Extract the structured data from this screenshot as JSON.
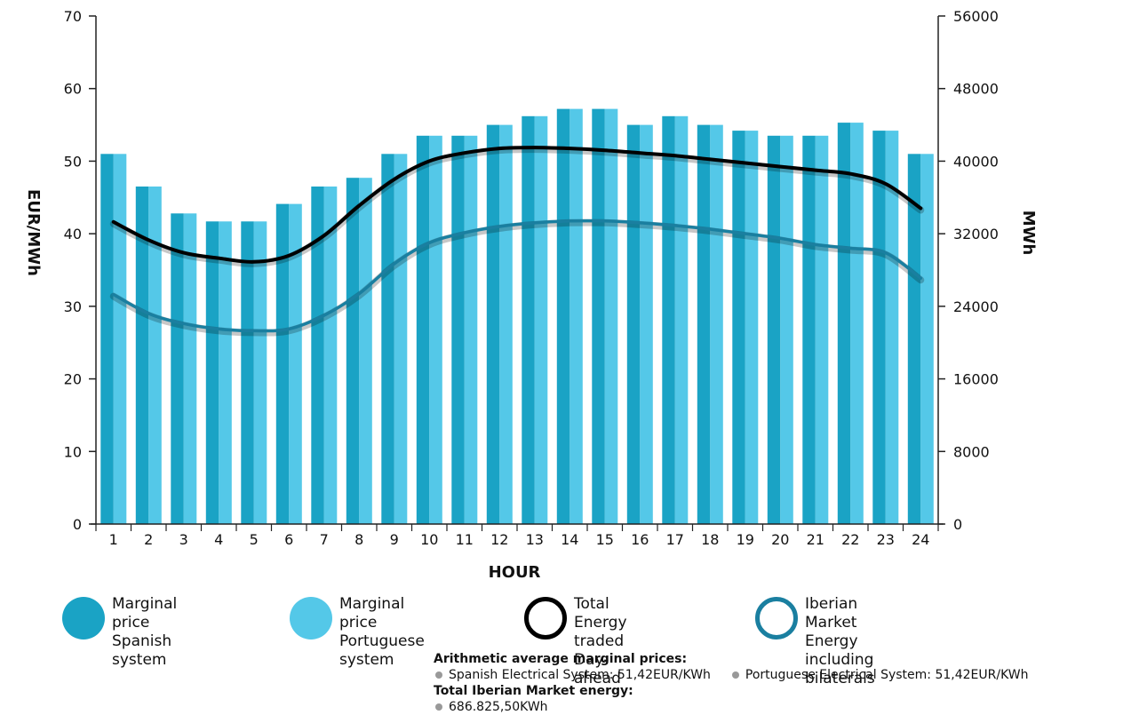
{
  "chart_data": {
    "type": "bar",
    "xlabel": "HOUR",
    "ylabel_left": "EUR/MWh",
    "ylabel_right": "MWh",
    "categories": [
      "1",
      "2",
      "3",
      "4",
      "5",
      "6",
      "7",
      "8",
      "9",
      "10",
      "11",
      "12",
      "13",
      "14",
      "15",
      "16",
      "17",
      "18",
      "19",
      "20",
      "21",
      "22",
      "23",
      "24"
    ],
    "y_left_range": [
      0,
      70
    ],
    "y_left_ticks": [
      "0",
      "10",
      "20",
      "30",
      "40",
      "50",
      "60",
      "70"
    ],
    "y_right_range": [
      0,
      56000
    ],
    "y_right_ticks": [
      "0",
      "8000",
      "16000",
      "24000",
      "32000",
      "40000",
      "48000",
      "56000"
    ],
    "grid": false,
    "series": [
      {
        "name": "Marginal price Spanish system",
        "axis": "left",
        "kind": "bar",
        "color": "#1aa3c5",
        "values": [
          51,
          46.5,
          42.8,
          41.7,
          41.7,
          44.1,
          46.5,
          47.7,
          51,
          53.5,
          53.5,
          55,
          56.2,
          57.2,
          57.2,
          55,
          56.2,
          55,
          54.2,
          53.5,
          53.5,
          55.3,
          54.2,
          51
        ]
      },
      {
        "name": "Marginal price Portuguese system",
        "axis": "left",
        "kind": "bar",
        "color": "#54c8e8",
        "values": [
          51,
          46.5,
          42.8,
          41.7,
          41.7,
          44.1,
          46.5,
          47.7,
          51,
          53.5,
          53.5,
          55,
          56.2,
          57.2,
          57.2,
          55,
          56.2,
          55,
          54.2,
          53.5,
          53.5,
          55.3,
          54.2,
          51
        ]
      },
      {
        "name": "Total Energy traded Day-ahead",
        "axis": "right",
        "kind": "line",
        "color": "#000000",
        "values": [
          33300,
          31300,
          29900,
          29300,
          28900,
          29600,
          31800,
          35100,
          38000,
          40000,
          40900,
          41400,
          41500,
          41400,
          41200,
          40900,
          40600,
          40200,
          39800,
          39400,
          39000,
          38600,
          37500,
          34800
        ]
      },
      {
        "name": "Iberian Market Energy including bilaterals",
        "axis": "right",
        "kind": "line",
        "color": "#1a7fa0",
        "values": [
          25300,
          23200,
          22100,
          21500,
          21300,
          21500,
          23000,
          25400,
          28700,
          31000,
          32100,
          32800,
          33200,
          33400,
          33400,
          33200,
          32900,
          32500,
          32000,
          31500,
          30800,
          30400,
          29900,
          27100
        ]
      }
    ]
  },
  "legend": [
    {
      "label": "Marginal price\nSpanish system",
      "style": "fill",
      "color": "#1aa3c5"
    },
    {
      "label": "Marginal price\nPortuguese system",
      "style": "fill",
      "color": "#54c8e8"
    },
    {
      "label": "Total Energy traded\nDay-ahead",
      "style": "ring",
      "color": "#000000"
    },
    {
      "label": "Iberian Market Energy\nincluding bilaterals",
      "style": "ring",
      "color": "#1a7fa0"
    }
  ],
  "summary": {
    "avg_heading": "Arithmetic average marginal prices:",
    "avg_spanish": "Spanish Electrical System: 51,42EUR/KWh",
    "avg_portuguese": "Portuguese Electrical System: 51,42EUR/KWh",
    "energy_heading": "Total Iberian Market energy:",
    "energy_value": "686.825,50KWh"
  }
}
